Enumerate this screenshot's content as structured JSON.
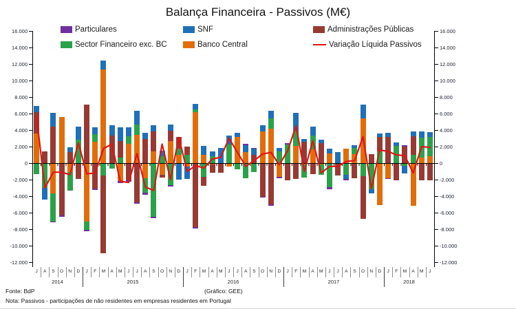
{
  "title": "Balança Financeira - Passivos (M€)",
  "footer": {
    "source": "Fonte: BdP",
    "credit": "(Gráfico: GEE)",
    "note": "Nota: Passivos - participações de não residentes em empresas residentes em Portugal"
  },
  "legend": [
    {
      "label": "Particulares",
      "color": "#7030A0",
      "type": "box"
    },
    {
      "label": "SNF",
      "color": "#1F70B8",
      "type": "box"
    },
    {
      "label": "Administrações Públicas",
      "color": "#973A33",
      "type": "box"
    },
    {
      "label": "Sector Financeiro exc. BC",
      "color": "#2BA24A",
      "type": "box"
    },
    {
      "label": "Banco Central",
      "color": "#E36C0A",
      "type": "box"
    },
    {
      "label": "Variação Líquida Passivos",
      "color": "#E01414",
      "type": "line"
    }
  ],
  "chart_data": {
    "type": "stacked-bar+line",
    "unit": "M€",
    "ylim": [
      -12000,
      16000
    ],
    "y_step": 2000,
    "y_tick_labels": [
      "16.000",
      "14.000",
      "12.000",
      "10.000",
      "8.000",
      "6.000",
      "4.000",
      "2.000",
      "0",
      "-2.000",
      "-4.000",
      "-6.000",
      "-8.000",
      "-10.000",
      "-12.000"
    ],
    "month_letters": [
      "J",
      "A",
      "S",
      "O",
      "N",
      "D",
      "J",
      "F",
      "M",
      "A",
      "M",
      "J",
      "J",
      "A",
      "S",
      "O",
      "N",
      "D",
      "J",
      "F",
      "M",
      "A",
      "M",
      "J",
      "J",
      "A",
      "S",
      "O",
      "N",
      "D",
      "J",
      "F",
      "M",
      "A",
      "M",
      "J",
      "J",
      "A",
      "S",
      "O",
      "N",
      "D",
      "J",
      "F",
      "M",
      "A",
      "M",
      "J"
    ],
    "years": [
      {
        "label": "2014",
        "start": 0,
        "count": 6
      },
      {
        "label": "2015",
        "start": 6,
        "count": 12
      },
      {
        "label": "2016",
        "start": 18,
        "count": 12
      },
      {
        "label": "2017",
        "start": 30,
        "count": 12
      },
      {
        "label": "2018",
        "start": 42,
        "count": 6
      }
    ],
    "categories": [
      "jul-14",
      "ago-14",
      "set-14",
      "out-14",
      "nov-14",
      "dez-14",
      "jan-15",
      "fev-15",
      "mar-15",
      "abr-15",
      "mai-15",
      "jun-15",
      "jul-15",
      "ago-15",
      "set-15",
      "out-15",
      "nov-15",
      "dez-15",
      "jan-16",
      "fev-16",
      "mar-16",
      "abr-16",
      "mai-16",
      "jun-16",
      "jul-16",
      "ago-16",
      "set-16",
      "out-16",
      "nov-16",
      "dez-16",
      "jan-17",
      "fev-17",
      "mar-17",
      "abr-17",
      "mai-17",
      "jun-17",
      "jul-17",
      "ago-17",
      "set-17",
      "out-17",
      "nov-17",
      "dez-17",
      "jan-18",
      "fev-18",
      "mar-18",
      "abr-18",
      "mai-18",
      "jun-18"
    ],
    "series": [
      {
        "name": "Particulares",
        "color": "#7030A0",
        "values": [
          0,
          0,
          -100,
          -200,
          0,
          0,
          -200,
          -150,
          0,
          0,
          -200,
          -200,
          -150,
          -200,
          -200,
          0,
          -150,
          0,
          0,
          -150,
          0,
          0,
          0,
          0,
          0,
          100,
          100,
          -100,
          -150,
          -150,
          150,
          0,
          0,
          0,
          0,
          -200,
          0,
          -200,
          0,
          0,
          0,
          0,
          -100,
          0,
          150,
          0,
          0,
          0
        ]
      },
      {
        "name": "SNF",
        "color": "#1F70B8",
        "values": [
          700,
          -1400,
          1650,
          0,
          600,
          1650,
          0,
          850,
          1100,
          1250,
          1650,
          1050,
          1700,
          700,
          750,
          650,
          750,
          -2000,
          -1500,
          700,
          1100,
          600,
          1800,
          1100,
          450,
          900,
          750,
          800,
          900,
          450,
          0,
          2200,
          350,
          1050,
          400,
          600,
          1300,
          -500,
          350,
          1600,
          -450,
          350,
          450,
          400,
          -950,
          550,
          750,
          550
        ]
      },
      {
        "name": "Administrações Públicas",
        "color": "#973A33",
        "values": [
          2600,
          1400,
          4400,
          -6300,
          1300,
          -1900,
          7050,
          -3100,
          -9400,
          3350,
          1950,
          -2050,
          -4750,
          2950,
          2350,
          -350,
          1250,
          1450,
          1000,
          -7750,
          -1100,
          -950,
          -1200,
          0,
          0,
          0,
          1000,
          -4100,
          -5000,
          0,
          -2100,
          -1900,
          2600,
          -1300,
          2450,
          0,
          -1500,
          0,
          -1800,
          -5200,
          1100,
          1750,
          3200,
          -2050,
          2000,
          2250,
          -2100,
          -2050
        ]
      },
      {
        "name": "Sector Financeiro exc. BC",
        "color": "#2BA24A",
        "values": [
          -1350,
          -3000,
          -3400,
          0,
          -2300,
          2800,
          -1000,
          950,
          -1500,
          -650,
          700,
          900,
          1250,
          -1800,
          -6500,
          850,
          -2700,
          750,
          1000,
          350,
          -1650,
          850,
          0,
          2250,
          -750,
          -1850,
          -1100,
          0,
          1250,
          1400,
          2250,
          1800,
          -1550,
          1650,
          -1200,
          -2950,
          0,
          -1400,
          750,
          -1550,
          -3200,
          1450,
          0,
          2100,
          -300,
          1000,
          2350,
          2350
        ]
      },
      {
        "name": "Banco Central",
        "color": "#E36C0A",
        "values": [
          3600,
          0,
          -3650,
          5600,
          -1050,
          0,
          -7050,
          2550,
          11300,
          0,
          -2200,
          2350,
          3400,
          -1800,
          1450,
          -1400,
          2700,
          1000,
          -400,
          6150,
          1000,
          -200,
          0,
          -400,
          3200,
          1300,
          0,
          3800,
          4200,
          -1700,
          0,
          2100,
          -200,
          1700,
          -200,
          1150,
          0,
          1750,
          1100,
          5450,
          0,
          -5100,
          -1800,
          0,
          0,
          -5150,
          700,
          850
        ]
      }
    ],
    "line_series": {
      "name": "Variação Líquida Passivos",
      "color": "#E01414",
      "values": [
        5600,
        -3000,
        -1100,
        -1100,
        -1400,
        2450,
        -1300,
        -1200,
        1750,
        2300,
        -2200,
        -2350,
        1150,
        -2900,
        -3300,
        2300,
        -2000,
        3100,
        -1000,
        -300,
        -600,
        500,
        700,
        3000,
        1300,
        -400,
        300,
        1100,
        1300,
        -200,
        1500,
        4500,
        -1000,
        2700,
        -1200,
        -400,
        -400,
        200,
        300,
        3200,
        -3100,
        1600,
        1400,
        1000,
        900,
        -1200,
        2000,
        1900
      ]
    }
  }
}
